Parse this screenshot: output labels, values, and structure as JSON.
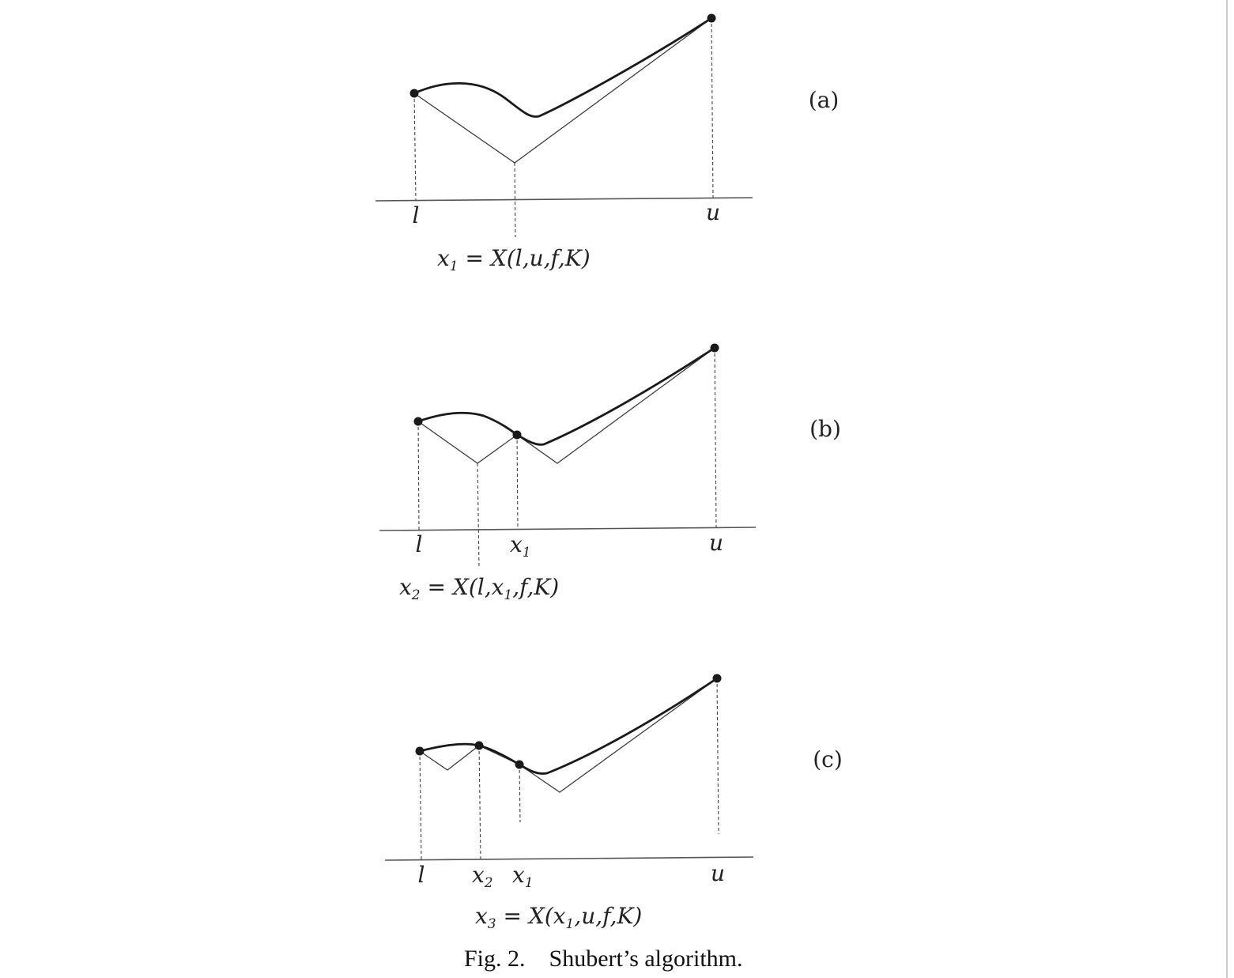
{
  "figure": {
    "caption_label": "Fig. 2.",
    "caption_text": "Shubert’s algorithm."
  },
  "panels": [
    {
      "panel_label": "(a)",
      "ticks": [
        {
          "base": "l",
          "sub": ""
        },
        {
          "base": "u",
          "sub": ""
        }
      ],
      "formula": [
        {
          "t": "x"
        },
        {
          "t": "1",
          "sub": true
        },
        {
          "t": " = X(l,u,f,K)"
        }
      ]
    },
    {
      "panel_label": "(b)",
      "ticks": [
        {
          "base": "l",
          "sub": ""
        },
        {
          "base": "x",
          "sub": "1"
        },
        {
          "base": "u",
          "sub": ""
        }
      ],
      "formula": [
        {
          "t": "x"
        },
        {
          "t": "2",
          "sub": true
        },
        {
          "t": " = X(l,x"
        },
        {
          "t": "1",
          "sub": true
        },
        {
          "t": ",f,K)"
        }
      ]
    },
    {
      "panel_label": "(c)",
      "ticks": [
        {
          "base": "l",
          "sub": ""
        },
        {
          "base": "x",
          "sub": "2"
        },
        {
          "base": "x",
          "sub": "1"
        },
        {
          "base": "u",
          "sub": ""
        }
      ],
      "formula": [
        {
          "t": "x"
        },
        {
          "t": "3",
          "sub": true
        },
        {
          "t": " = X(x"
        },
        {
          "t": "1",
          "sub": true
        },
        {
          "t": ",u,f,K)"
        }
      ]
    }
  ]
}
